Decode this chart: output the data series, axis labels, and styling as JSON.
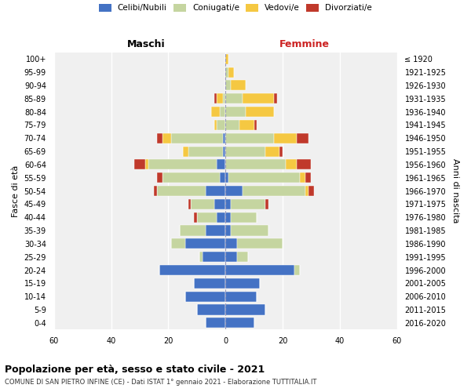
{
  "age_groups": [
    "0-4",
    "5-9",
    "10-14",
    "15-19",
    "20-24",
    "25-29",
    "30-34",
    "35-39",
    "40-44",
    "45-49",
    "50-54",
    "55-59",
    "60-64",
    "65-69",
    "70-74",
    "75-79",
    "80-84",
    "85-89",
    "90-94",
    "95-99",
    "100+"
  ],
  "birth_years": [
    "2016-2020",
    "2011-2015",
    "2006-2010",
    "2001-2005",
    "1996-2000",
    "1991-1995",
    "1986-1990",
    "1981-1985",
    "1976-1980",
    "1971-1975",
    "1966-1970",
    "1961-1965",
    "1956-1960",
    "1951-1955",
    "1946-1950",
    "1941-1945",
    "1936-1940",
    "1931-1935",
    "1926-1930",
    "1921-1925",
    "≤ 1920"
  ],
  "colors": {
    "celibi": "#4472c4",
    "coniugati": "#c5d5a0",
    "vedovi": "#f5c842",
    "divorziati": "#c0392b"
  },
  "maschi": {
    "celibi": [
      7,
      10,
      14,
      11,
      23,
      8,
      14,
      7,
      3,
      4,
      7,
      2,
      3,
      1,
      1,
      0,
      0,
      0,
      0,
      0,
      0
    ],
    "coniugati": [
      0,
      0,
      0,
      0,
      0,
      1,
      5,
      9,
      7,
      8,
      17,
      20,
      24,
      12,
      18,
      3,
      2,
      1,
      0,
      0,
      0
    ],
    "vedovi": [
      0,
      0,
      0,
      0,
      0,
      0,
      0,
      0,
      0,
      0,
      0,
      0,
      1,
      2,
      3,
      1,
      3,
      2,
      0,
      0,
      0
    ],
    "divorziati": [
      0,
      0,
      0,
      0,
      0,
      0,
      0,
      0,
      1,
      1,
      1,
      2,
      4,
      0,
      2,
      0,
      0,
      1,
      0,
      0,
      0
    ]
  },
  "femmine": {
    "celibi": [
      10,
      14,
      11,
      12,
      24,
      4,
      4,
      2,
      2,
      2,
      6,
      1,
      0,
      0,
      0,
      0,
      0,
      0,
      0,
      0,
      0
    ],
    "coniugati": [
      0,
      0,
      0,
      0,
      2,
      4,
      16,
      13,
      9,
      12,
      22,
      25,
      21,
      14,
      17,
      5,
      7,
      6,
      2,
      1,
      0
    ],
    "vedovi": [
      0,
      0,
      0,
      0,
      0,
      0,
      0,
      0,
      0,
      0,
      1,
      2,
      4,
      5,
      8,
      5,
      10,
      11,
      5,
      2,
      1
    ],
    "divorziati": [
      0,
      0,
      0,
      0,
      0,
      0,
      0,
      0,
      0,
      1,
      2,
      2,
      5,
      1,
      4,
      1,
      0,
      1,
      0,
      0,
      0
    ]
  },
  "title": "Popolazione per età, sesso e stato civile - 2021",
  "subtitle": "COMUNE DI SAN PIETRO INFINE (CE) - Dati ISTAT 1° gennaio 2021 - Elaborazione TUTTITALIA.IT",
  "xlabel_maschi": "Maschi",
  "xlabel_femmine": "Femmine",
  "ylabel": "Fasce di età",
  "ylabel_right": "Anni di nascita",
  "xlim": 60,
  "bg_color": "#f0f0f0",
  "legend_labels": [
    "Celibi/Nubili",
    "Coniugati/e",
    "Vedovi/e",
    "Divorziati/e"
  ]
}
